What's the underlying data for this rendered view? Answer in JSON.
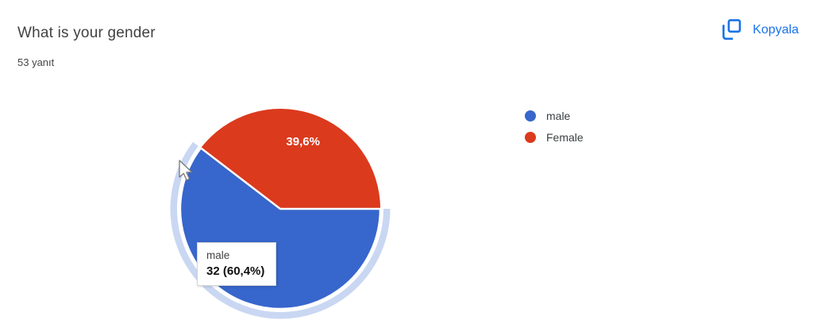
{
  "header": {
    "title": "What is your gender",
    "responses": "53 yanıt"
  },
  "copy_button": {
    "label": "Kopyala",
    "color": "#1a73e8"
  },
  "chart_data": {
    "type": "pie",
    "title": "What is your gender",
    "responses_label": "53 yanıt",
    "total_responses": 53,
    "start_angle_deg": 0,
    "direction": "clockwise",
    "legend_position": "right",
    "highlight_ring_color": "#c9d7f2",
    "series": [
      {
        "name": "male",
        "value": 32,
        "percent": 60.4,
        "percent_label": "60,4%",
        "color": "#3766cc",
        "selected": true,
        "in_chart_label": ""
      },
      {
        "name": "Female",
        "value": 21,
        "percent": 39.6,
        "percent_label": "39,6%",
        "color": "#db3a1d",
        "selected": false,
        "in_chart_label": "39,6%"
      }
    ]
  },
  "legend": {
    "items": [
      {
        "label": "male",
        "color": "#3766cc"
      },
      {
        "label": "Female",
        "color": "#db3a1d"
      }
    ]
  },
  "tooltip": {
    "label": "male",
    "value": "32 (60,4%)"
  }
}
